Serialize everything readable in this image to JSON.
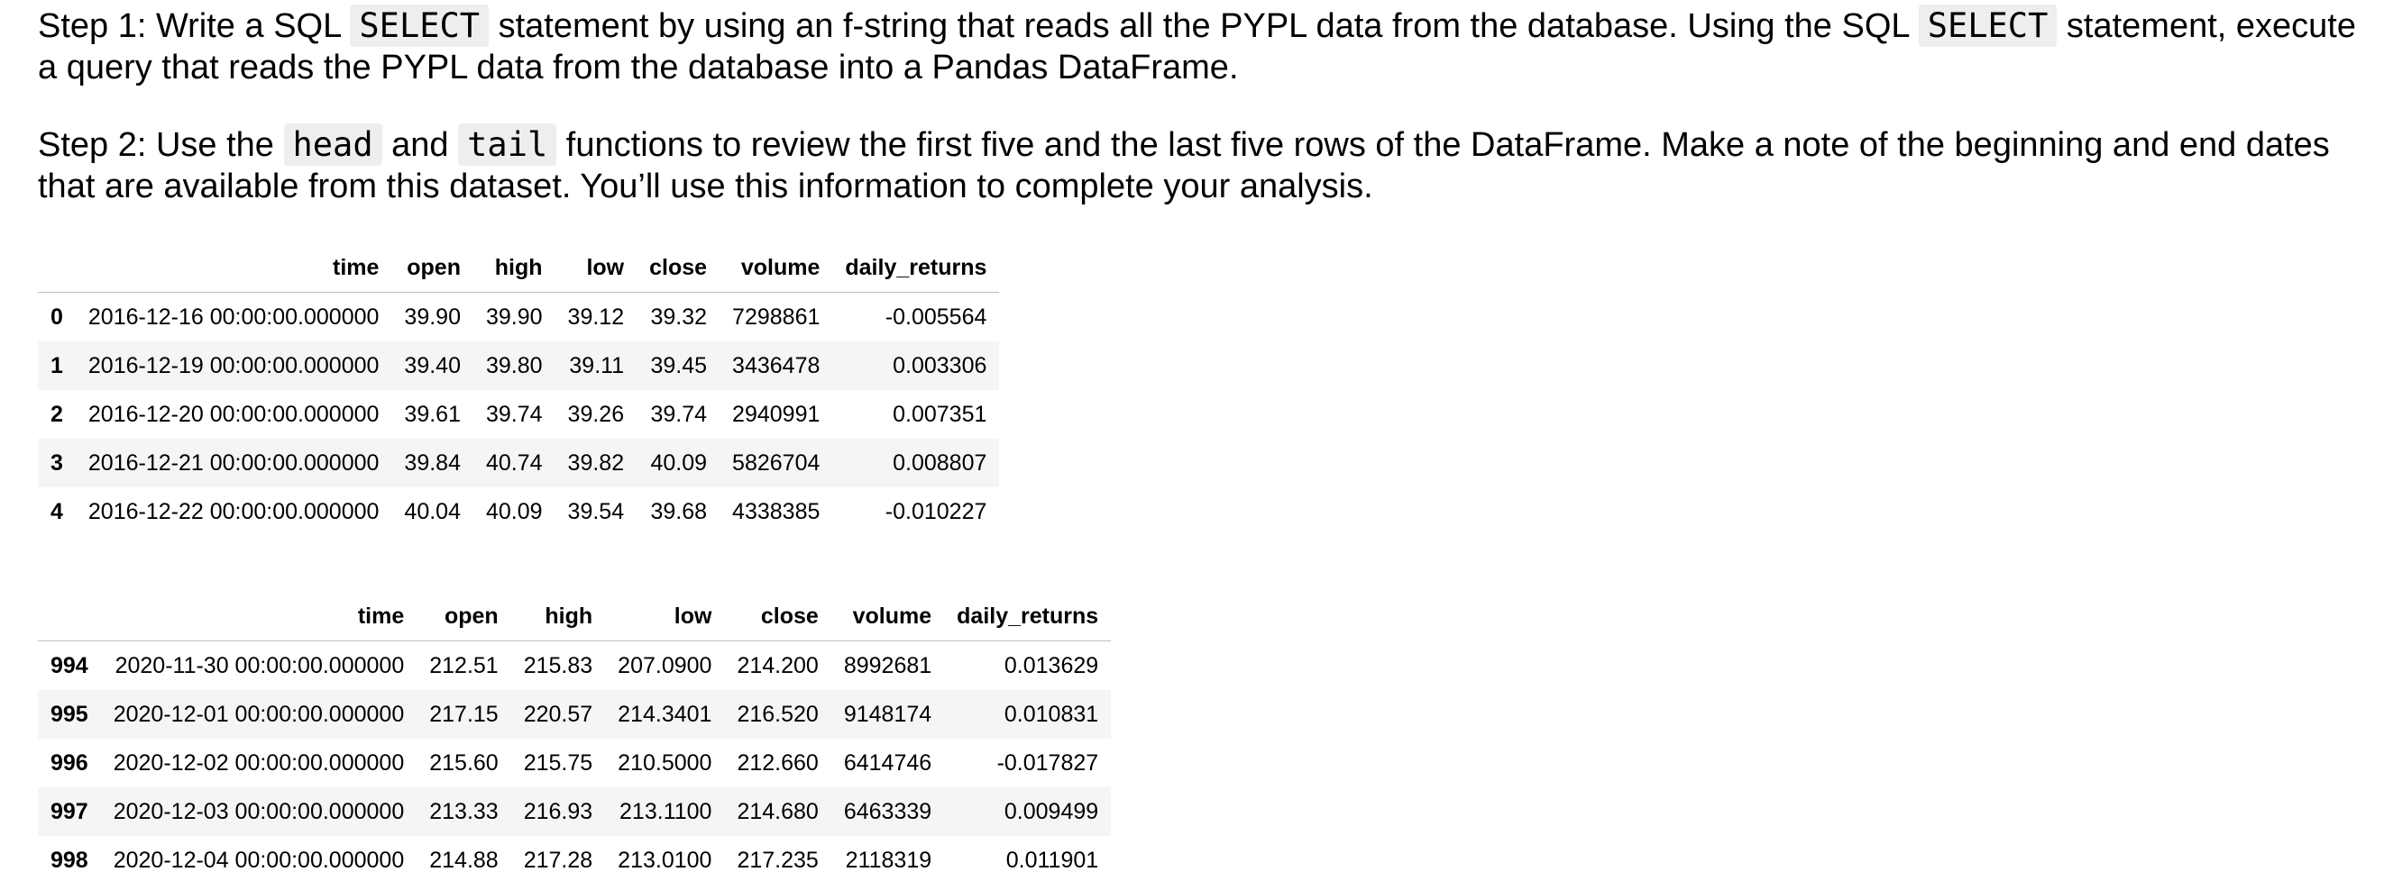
{
  "step1": {
    "part1": "Step 1: Write a SQL ",
    "code1": "SELECT",
    "part2": " statement by using an f-string that reads all the PYPL data from the database. Using the SQL ",
    "code2": "SELECT",
    "part3": " statement, execute a query that reads the PYPL data from the database into a Pandas DataFrame."
  },
  "step2": {
    "part1": "Step 2: Use the ",
    "code1": "head",
    "part2": " and ",
    "code2": "tail",
    "part3": " functions to review the first five and the last five rows of the DataFrame. Make a note of the beginning and end dates that are available from this dataset. You’ll use this information to complete your analysis."
  },
  "head_table": {
    "columns": [
      "",
      "time",
      "open",
      "high",
      "low",
      "close",
      "volume",
      "daily_returns"
    ],
    "rows": [
      [
        "0",
        "2016-12-16 00:00:00.000000",
        "39.90",
        "39.90",
        "39.12",
        "39.32",
        "7298861",
        "-0.005564"
      ],
      [
        "1",
        "2016-12-19 00:00:00.000000",
        "39.40",
        "39.80",
        "39.11",
        "39.45",
        "3436478",
        "0.003306"
      ],
      [
        "2",
        "2016-12-20 00:00:00.000000",
        "39.61",
        "39.74",
        "39.26",
        "39.74",
        "2940991",
        "0.007351"
      ],
      [
        "3",
        "2016-12-21 00:00:00.000000",
        "39.84",
        "40.74",
        "39.82",
        "40.09",
        "5826704",
        "0.008807"
      ],
      [
        "4",
        "2016-12-22 00:00:00.000000",
        "40.04",
        "40.09",
        "39.54",
        "39.68",
        "4338385",
        "-0.010227"
      ]
    ]
  },
  "tail_table": {
    "columns": [
      "",
      "time",
      "open",
      "high",
      "low",
      "close",
      "volume",
      "daily_returns"
    ],
    "rows": [
      [
        "994",
        "2020-11-30 00:00:00.000000",
        "212.51",
        "215.83",
        "207.0900",
        "214.200",
        "8992681",
        "0.013629"
      ],
      [
        "995",
        "2020-12-01 00:00:00.000000",
        "217.15",
        "220.57",
        "214.3401",
        "216.520",
        "9148174",
        "0.010831"
      ],
      [
        "996",
        "2020-12-02 00:00:00.000000",
        "215.60",
        "215.75",
        "210.5000",
        "212.660",
        "6414746",
        "-0.017827"
      ],
      [
        "997",
        "2020-12-03 00:00:00.000000",
        "213.33",
        "216.93",
        "213.1100",
        "214.680",
        "6463339",
        "0.009499"
      ],
      [
        "998",
        "2020-12-04 00:00:00.000000",
        "214.88",
        "217.28",
        "213.0100",
        "217.235",
        "2118319",
        "0.011901"
      ]
    ]
  }
}
